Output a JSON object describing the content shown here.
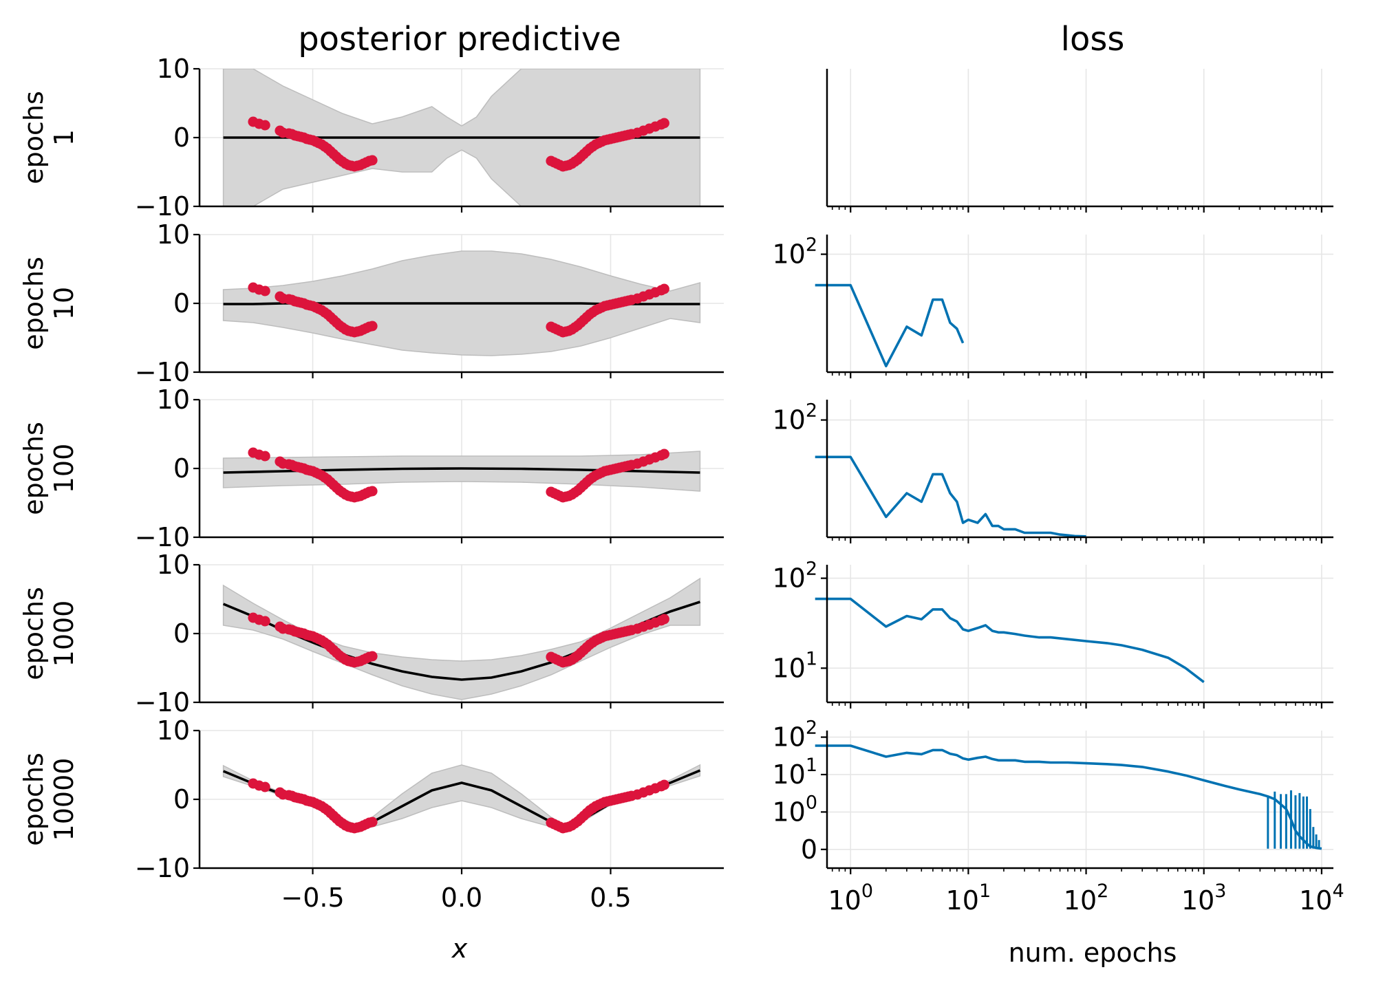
{
  "colors": {
    "band": "#d6d6d6",
    "band_edge": "#bdbdbd",
    "mean": "#000000",
    "data": "#dc143c",
    "loss": "#0072b2",
    "grid": "#e6e6e6"
  },
  "chart_data": {
    "type": "line",
    "figure": {
      "left_title": "posterior predictive",
      "right_title": "loss",
      "left_xlabel": "x",
      "right_xlabel": "num. epochs"
    },
    "posterior": {
      "xlim": [
        -0.88,
        0.88
      ],
      "ylim": [
        -10,
        10
      ],
      "x_ticks": [
        -0.5,
        0.0,
        0.5
      ],
      "x_tick_labels": [
        "−0.5",
        "0.0",
        "0.5"
      ],
      "y_ticks": [
        10,
        0,
        -10
      ],
      "y_tick_labels": [
        "10",
        "0",
        "−10"
      ],
      "observations": {
        "series_name": "data",
        "left_x": [
          -0.7,
          -0.68,
          -0.66,
          -0.61,
          -0.6,
          -0.58,
          -0.57,
          -0.56,
          -0.55,
          -0.54,
          -0.53,
          -0.52,
          -0.51,
          -0.5,
          -0.49,
          -0.48,
          -0.47,
          -0.46,
          -0.45,
          -0.44,
          -0.43,
          -0.42,
          -0.41,
          -0.4,
          -0.39,
          -0.38,
          -0.37,
          -0.36,
          -0.35,
          -0.34,
          -0.33,
          -0.32,
          -0.31,
          -0.3
        ],
        "left_y": [
          2.3,
          2.0,
          1.8,
          1.0,
          0.7,
          0.6,
          0.5,
          0.3,
          0.2,
          0.1,
          0.0,
          -0.2,
          -0.3,
          -0.4,
          -0.6,
          -0.8,
          -1.0,
          -1.3,
          -1.6,
          -2.0,
          -2.4,
          -2.8,
          -3.2,
          -3.5,
          -3.8,
          -4.0,
          -4.1,
          -4.2,
          -4.1,
          -4.0,
          -3.8,
          -3.6,
          -3.4,
          -3.3
        ],
        "right_x": [
          0.3,
          0.31,
          0.32,
          0.33,
          0.34,
          0.35,
          0.36,
          0.37,
          0.38,
          0.39,
          0.4,
          0.41,
          0.42,
          0.43,
          0.44,
          0.45,
          0.46,
          0.47,
          0.48,
          0.49,
          0.5,
          0.51,
          0.52,
          0.53,
          0.54,
          0.55,
          0.56,
          0.57,
          0.59,
          0.61,
          0.63,
          0.65,
          0.67,
          0.68
        ],
        "right_y": [
          -3.4,
          -3.6,
          -3.8,
          -4.0,
          -4.2,
          -4.1,
          -4.0,
          -3.8,
          -3.5,
          -3.2,
          -2.8,
          -2.4,
          -2.0,
          -1.6,
          -1.3,
          -1.0,
          -0.8,
          -0.6,
          -0.4,
          -0.3,
          -0.2,
          -0.1,
          0.0,
          0.1,
          0.2,
          0.3,
          0.4,
          0.5,
          0.7,
          1.0,
          1.3,
          1.6,
          1.9,
          2.1
        ]
      },
      "panels": [
        {
          "label": "epochs\n1",
          "label_line1": "epochs",
          "label_line2": "1",
          "x": [
            -0.8,
            -0.7,
            -0.6,
            -0.5,
            -0.4,
            -0.3,
            -0.2,
            -0.1,
            -0.05,
            0.0,
            0.05,
            0.1,
            0.2,
            0.3,
            0.4,
            0.5,
            0.6,
            0.7,
            0.8
          ],
          "mean": [
            0,
            0,
            0,
            0,
            0,
            0,
            0,
            0,
            0,
            0,
            0,
            0,
            0,
            0,
            0,
            0,
            0,
            0,
            0
          ],
          "upper": [
            10,
            10,
            7.5,
            5.5,
            3.5,
            2.0,
            3.0,
            4.5,
            3.0,
            1.7,
            3.0,
            6.0,
            10,
            10,
            10,
            10,
            10,
            10,
            10
          ],
          "lower": [
            -10,
            -10,
            -7.5,
            -6.5,
            -5.5,
            -4.5,
            -5.0,
            -5.0,
            -3.0,
            -1.8,
            -3.0,
            -6.0,
            -10,
            -10,
            -10,
            -10,
            -10,
            -10,
            -10
          ]
        },
        {
          "label": "epochs\n10",
          "label_line1": "epochs",
          "label_line2": "10",
          "x": [
            -0.8,
            -0.7,
            -0.6,
            -0.5,
            -0.4,
            -0.3,
            -0.2,
            -0.1,
            0.0,
            0.1,
            0.2,
            0.3,
            0.4,
            0.5,
            0.6,
            0.7,
            0.8
          ],
          "mean": [
            -0.1,
            -0.1,
            0.0,
            0.0,
            0.0,
            0.0,
            0.0,
            0.0,
            0.0,
            0.0,
            0.0,
            0.0,
            0.0,
            -0.1,
            -0.1,
            -0.1,
            -0.1
          ],
          "upper": [
            2.0,
            2.2,
            2.6,
            3.2,
            4.0,
            5.0,
            6.2,
            7.0,
            7.6,
            7.6,
            7.2,
            6.4,
            5.3,
            4.0,
            2.8,
            1.8,
            3.0
          ],
          "lower": [
            -2.5,
            -2.8,
            -3.5,
            -4.3,
            -5.2,
            -6.0,
            -6.8,
            -7.2,
            -7.5,
            -7.6,
            -7.4,
            -7.0,
            -6.2,
            -5.0,
            -3.6,
            -2.2,
            -2.8
          ]
        },
        {
          "label": "epochs\n100",
          "label_line1": "epochs",
          "label_line2": "100",
          "x": [
            -0.8,
            -0.6,
            -0.4,
            -0.2,
            0.0,
            0.2,
            0.4,
            0.6,
            0.8
          ],
          "mean": [
            -0.6,
            -0.4,
            -0.2,
            -0.05,
            0.0,
            -0.05,
            -0.2,
            -0.4,
            -0.6
          ],
          "upper": [
            1.5,
            1.6,
            1.7,
            1.8,
            1.8,
            1.8,
            1.8,
            2.0,
            2.5
          ],
          "lower": [
            -2.8,
            -2.5,
            -2.3,
            -2.0,
            -1.9,
            -2.0,
            -2.3,
            -2.7,
            -3.3
          ]
        },
        {
          "label": "epochs\n1000",
          "label_line1": "epochs",
          "label_line2": "1000",
          "x": [
            -0.8,
            -0.7,
            -0.6,
            -0.5,
            -0.4,
            -0.3,
            -0.2,
            -0.1,
            0.0,
            0.1,
            0.2,
            0.3,
            0.4,
            0.5,
            0.6,
            0.7,
            0.8
          ],
          "mean": [
            4.3,
            2.5,
            0.5,
            -1.3,
            -3.0,
            -4.4,
            -5.5,
            -6.3,
            -6.7,
            -6.4,
            -5.5,
            -4.2,
            -2.5,
            -0.6,
            1.4,
            3.2,
            4.6
          ],
          "upper": [
            7.0,
            4.4,
            2.0,
            -0.2,
            -1.8,
            -2.8,
            -3.4,
            -3.8,
            -4.0,
            -3.8,
            -3.2,
            -2.3,
            -1.2,
            0.8,
            3.0,
            5.2,
            8.0
          ],
          "lower": [
            1.2,
            0.5,
            -0.8,
            -2.6,
            -4.3,
            -6.0,
            -7.6,
            -8.8,
            -9.6,
            -8.8,
            -7.6,
            -6.0,
            -4.0,
            -2.0,
            -0.2,
            1.2,
            1.2
          ]
        },
        {
          "label": "epochs\n10000",
          "label_line1": "epochs",
          "label_line2": "10000",
          "x": [
            -0.8,
            -0.7,
            -0.6,
            -0.5,
            -0.4,
            -0.35,
            -0.3,
            -0.2,
            -0.1,
            0.0,
            0.1,
            0.2,
            0.3,
            0.35,
            0.4,
            0.5,
            0.6,
            0.7,
            0.8
          ],
          "mean": [
            4.1,
            2.3,
            0.7,
            -0.9,
            -3.0,
            -4.1,
            -3.3,
            -1.0,
            1.3,
            2.4,
            1.3,
            -1.0,
            -3.3,
            -4.1,
            -3.1,
            -0.6,
            0.9,
            2.4,
            4.2
          ],
          "upper": [
            4.9,
            2.7,
            0.9,
            -0.7,
            -2.8,
            -3.8,
            -2.6,
            0.8,
            3.8,
            5.0,
            3.8,
            0.8,
            -2.6,
            -3.8,
            -2.8,
            -0.4,
            1.1,
            2.8,
            5.0
          ],
          "lower": [
            3.3,
            1.9,
            0.5,
            -1.1,
            -3.2,
            -4.4,
            -4.0,
            -2.8,
            -1.2,
            -0.2,
            -1.2,
            -2.8,
            -4.0,
            -4.4,
            -3.4,
            -0.8,
            0.7,
            2.0,
            3.4
          ]
        }
      ]
    },
    "loss": {
      "xscale": "log",
      "xlim_log10": [
        -0.2,
        4.1
      ],
      "x_ticks": [
        1,
        10,
        100,
        1000,
        10000
      ],
      "x_tick_base": [
        "10",
        "10",
        "10",
        "10",
        "10"
      ],
      "x_tick_exp": [
        "0",
        "1",
        "2",
        "3",
        "4"
      ],
      "panels": [
        {
          "epochs": 1,
          "yscale": "log",
          "ylim_log10": [
            0.0,
            2.0
          ],
          "y_ticks": [],
          "x": [],
          "y": []
        },
        {
          "epochs": 10,
          "yscale": "log",
          "ylim_log10": [
            1.1,
            2.15
          ],
          "y_ticks": [
            100
          ],
          "y_tick_base": [
            "10"
          ],
          "y_tick_exp": [
            "2"
          ],
          "x": [
            0.5,
            1,
            2,
            3,
            4,
            5,
            6,
            7,
            8,
            9
          ],
          "y": [
            58,
            58,
            14,
            28,
            24,
            45,
            45,
            30,
            27,
            21
          ]
        },
        {
          "epochs": 100,
          "yscale": "log",
          "ylim_log10": [
            1.25,
            2.13
          ],
          "y_ticks": [
            100
          ],
          "y_tick_base": [
            "10"
          ],
          "y_tick_exp": [
            "2"
          ],
          "x": [
            0.5,
            1,
            2,
            3,
            4,
            5,
            6,
            7,
            8,
            9,
            10,
            12,
            14,
            16,
            18,
            20,
            25,
            30,
            40,
            50,
            60,
            70,
            80,
            100
          ],
          "y": [
            58,
            58,
            24,
            34,
            30,
            45,
            45,
            34,
            30,
            22,
            23,
            22,
            25,
            21,
            21,
            20,
            20,
            19,
            19,
            19,
            18.5,
            18.3,
            18.1,
            18
          ]
        },
        {
          "epochs": 1000,
          "yscale": "log",
          "ylim_log10": [
            0.62,
            2.15
          ],
          "y_ticks": [
            100,
            10
          ],
          "y_tick_base": [
            "10",
            "10"
          ],
          "y_tick_exp": [
            "2",
            "1"
          ],
          "x": [
            0.5,
            1,
            2,
            3,
            4,
            5,
            6,
            7,
            8,
            9,
            10,
            12,
            14,
            16,
            18,
            20,
            25,
            30,
            40,
            50,
            70,
            100,
            150,
            200,
            300,
            500,
            700,
            1000
          ],
          "y": [
            59,
            59,
            29,
            38,
            35,
            45,
            45,
            36,
            33,
            27,
            26,
            28,
            30,
            26,
            25,
            25,
            24,
            23,
            22,
            22,
            21,
            20,
            19,
            18,
            16,
            13,
            10,
            7
          ]
        },
        {
          "epochs": 10000,
          "yscale": "symlog",
          "linthresh": 1,
          "y_ticks": [
            100,
            10,
            1,
            0
          ],
          "y_tick_base": [
            "10",
            "10",
            "10",
            "0"
          ],
          "y_tick_exp": [
            "2",
            "1",
            "0",
            ""
          ],
          "y_lim": [
            -0.5,
            150
          ],
          "x": [
            0.5,
            1,
            2,
            3,
            4,
            5,
            6,
            7,
            8,
            9,
            10,
            12,
            14,
            16,
            18,
            20,
            25,
            30,
            40,
            50,
            70,
            100,
            150,
            200,
            300,
            500,
            700,
            1000,
            1500,
            2000,
            3000,
            3500,
            4000,
            4500,
            5000,
            5500,
            6000,
            6500,
            7000,
            7500,
            8000,
            9000,
            10000
          ],
          "y": [
            59,
            59,
            30,
            38,
            35,
            45,
            45,
            36,
            33,
            27,
            25,
            28,
            30,
            26,
            24,
            24,
            24,
            22,
            22,
            21,
            21,
            20,
            19,
            18,
            16,
            12,
            9.5,
            7,
            5,
            4,
            3,
            2.6,
            2.2,
            1.6,
            1.2,
            0.8,
            0.5,
            0.35,
            0.25,
            0.15,
            0.08,
            0.04,
            0.02
          ],
          "spikes_x": [
            3500,
            4000,
            4500,
            5000,
            5500,
            6000,
            6500,
            7000,
            7500,
            8000,
            8500,
            9000,
            9500
          ],
          "spikes_y": [
            2.6,
            3.5,
            3.0,
            3.0,
            3.8,
            2.8,
            3.2,
            2.6,
            2.6,
            1.2,
            0.6,
            0.4,
            0.25
          ]
        }
      ]
    }
  }
}
